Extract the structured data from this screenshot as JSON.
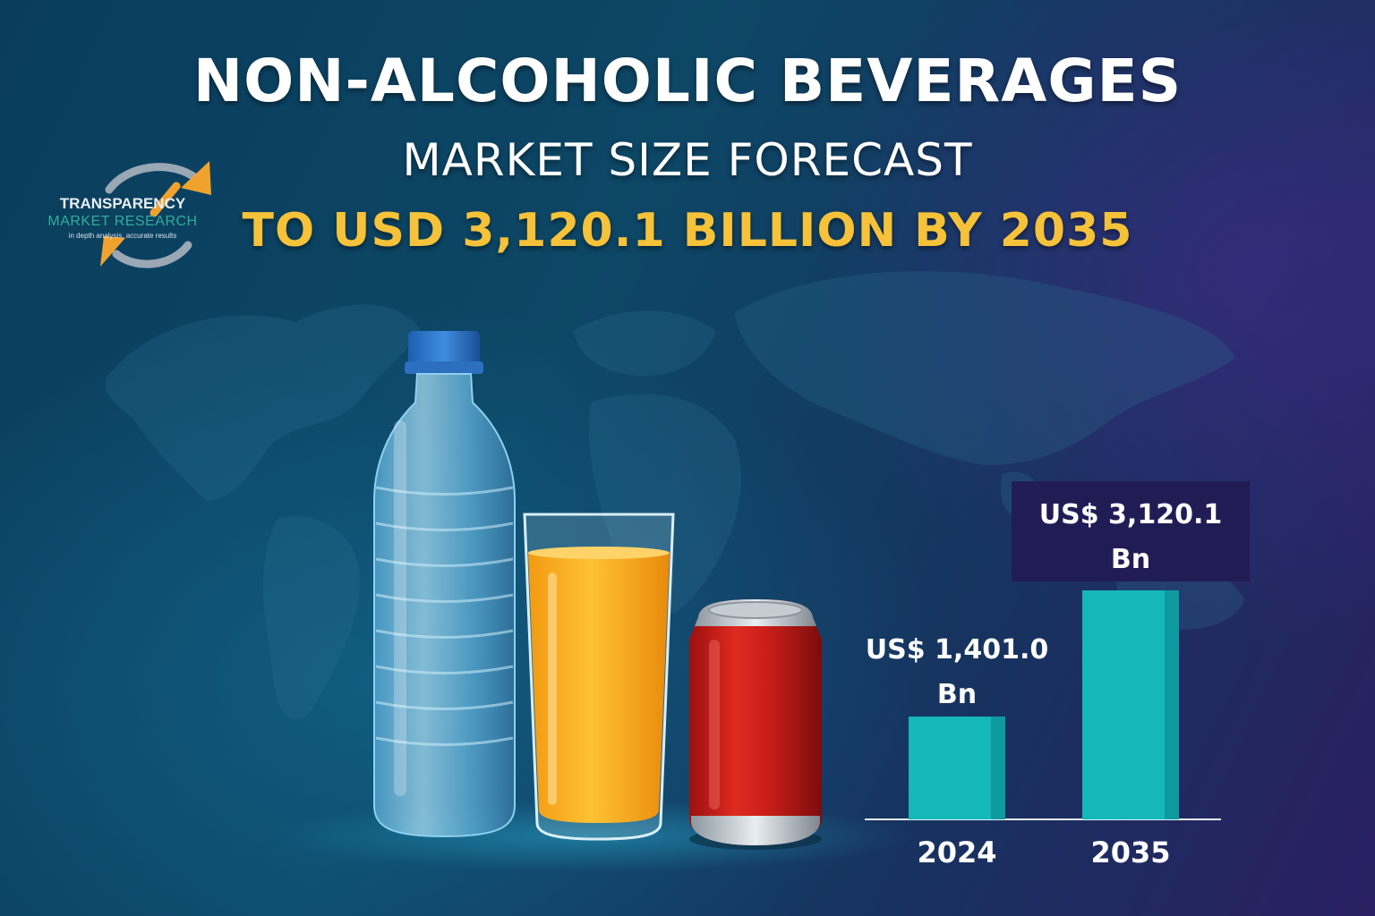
{
  "header": {
    "title_line1": "NON-ALCOHOLIC BEVERAGES",
    "title_line2": "MARKET SIZE FORECAST",
    "title_line3": "TO USD 3,120.1 BILLION BY 2035",
    "highlight_color": "#f5c23a"
  },
  "logo": {
    "line1": "TRANSPARENCY",
    "line2": "MARKET RESEARCH",
    "line3": "in depth analysis, accurate results",
    "icon": "circular-arrow-logo-icon"
  },
  "illustration": {
    "items": [
      "water-bottle-icon",
      "orange-juice-glass-icon",
      "soda-can-icon",
      "world-map-background"
    ]
  },
  "chart_data": {
    "type": "bar",
    "categories": [
      "2024",
      "2035"
    ],
    "values": [
      1401.0,
      3120.1
    ],
    "value_labels": [
      [
        "US$ 1,401.0",
        "Bn"
      ],
      [
        "US$ 3,120.1",
        "Bn"
      ]
    ],
    "ylim": [
      0,
      3120.1
    ],
    "grid": false,
    "bar_color": "#14b8b8",
    "label_box_color": "#221c55"
  }
}
